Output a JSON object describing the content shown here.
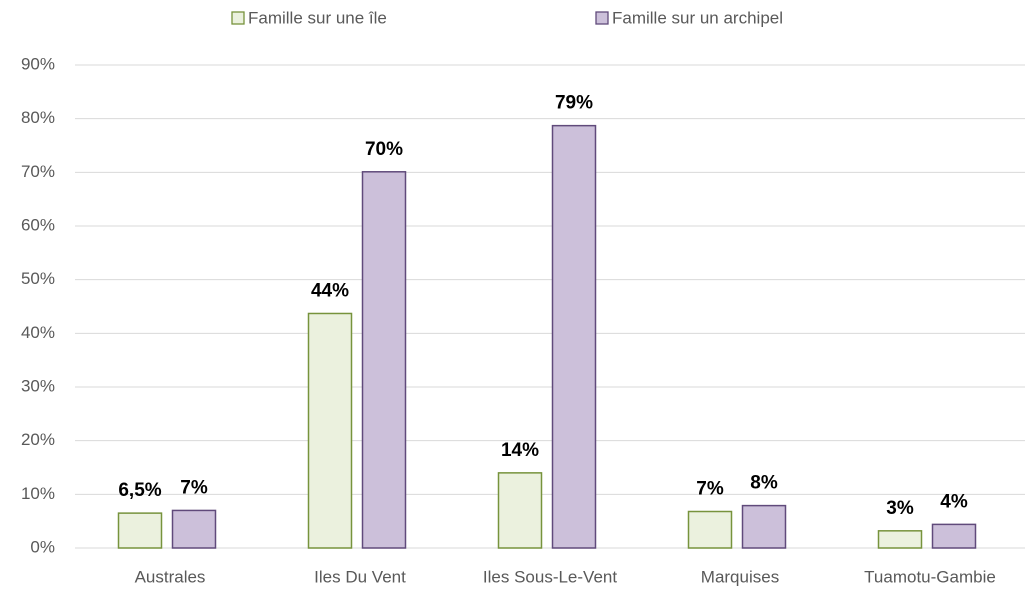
{
  "chart_data": {
    "type": "bar",
    "categories": [
      "Australes",
      "Iles Du Vent",
      "Iles Sous-Le-Vent",
      "Marquises",
      "Tuamotu-Gambie"
    ],
    "series": [
      {
        "name": "Famille sur une île",
        "color": "#ebf1de",
        "edge": "#77933c",
        "values": [
          6.5,
          43.7,
          14,
          6.8,
          3.2
        ],
        "value_labels": [
          "6,5%",
          "44%",
          "14%",
          "7%",
          "3%"
        ]
      },
      {
        "name": "Famille sur un archipel",
        "color": "#ccc0da",
        "edge": "#604a7b",
        "values": [
          7,
          70.1,
          78.7,
          7.9,
          4.4
        ],
        "value_labels": [
          "7%",
          "70%",
          "79%",
          "8%",
          "4%"
        ]
      }
    ],
    "ylim": [
      0,
      90
    ],
    "yticks": [
      {
        "value": 0,
        "label": "0%"
      },
      {
        "value": 10,
        "label": "10%"
      },
      {
        "value": 20,
        "label": "20%"
      },
      {
        "value": 30,
        "label": "30%"
      },
      {
        "value": 40,
        "label": "40%"
      },
      {
        "value": 50,
        "label": "50%"
      },
      {
        "value": 60,
        "label": "60%"
      },
      {
        "value": 70,
        "label": "70%"
      },
      {
        "value": 80,
        "label": "80%"
      },
      {
        "value": 90,
        "label": "90%"
      }
    ],
    "grid": true,
    "legend": "top"
  }
}
